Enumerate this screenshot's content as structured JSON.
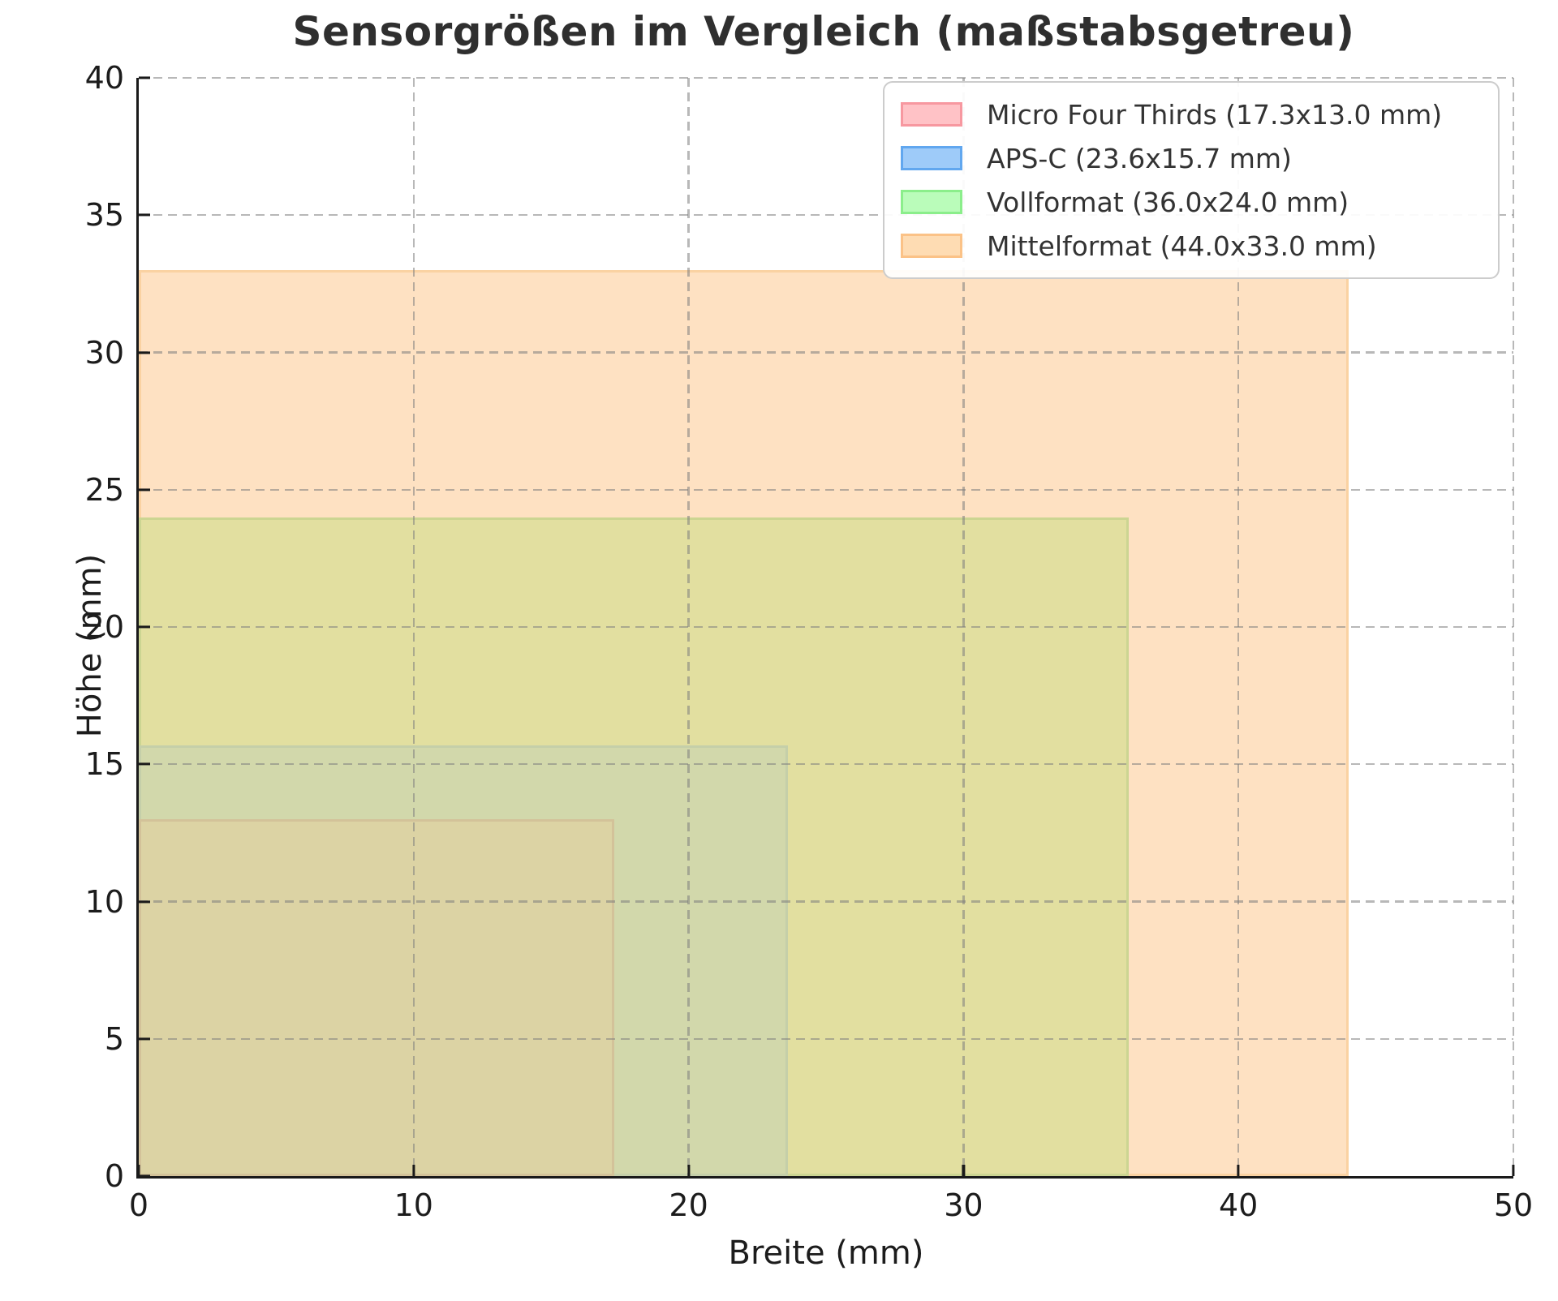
{
  "chart_data": {
    "type": "area",
    "title": "Sensorgrößen im Vergleich (maßstabsgetreu)",
    "xlabel": "Breite (mm)",
    "ylabel": "Höhe (mm)",
    "xlim": [
      0,
      50
    ],
    "ylim": [
      0,
      40
    ],
    "xticks": [
      0,
      10,
      20,
      30,
      40,
      50
    ],
    "yticks": [
      0,
      5,
      10,
      15,
      20,
      25,
      30,
      35,
      40
    ],
    "grid": true,
    "grid_style": "dashed",
    "legend_position": "upper right",
    "sensors": [
      {
        "name": "Micro Four Thirds",
        "legend_label": "Micro Four Thirds (17.3x13.0 mm)",
        "width_mm": 17.3,
        "height_mm": 13.0,
        "zone_fill": "#dcd3a4",
        "zone_edge": "#d3c299",
        "legend_fill": "#ffc2c6",
        "legend_edge": "#f798a0"
      },
      {
        "name": "APS-C",
        "legend_label": "APS-C (23.6x15.7 mm)",
        "width_mm": 23.6,
        "height_mm": 15.7,
        "zone_fill": "#d2d8ab",
        "zone_edge": "#c5cfa9",
        "legend_fill": "#9ecbf9",
        "legend_edge": "#61a7ef"
      },
      {
        "name": "Vollformat",
        "legend_label": "Vollformat (36.0x24.0 mm)",
        "width_mm": 36.0,
        "height_mm": 24.0,
        "zone_fill": "#e2dfa0",
        "zone_edge": "#ccd592",
        "legend_fill": "#bafcba",
        "legend_edge": "#8bee8b"
      },
      {
        "name": "Mittelformat",
        "legend_label": "Mittelformat (44.0x33.0 mm)",
        "width_mm": 44.0,
        "height_mm": 33.0,
        "zone_fill": "#fee1c2",
        "zone_edge": "#fad2a2",
        "legend_fill": "#fedcb3",
        "legend_edge": "#fbc287"
      }
    ]
  }
}
